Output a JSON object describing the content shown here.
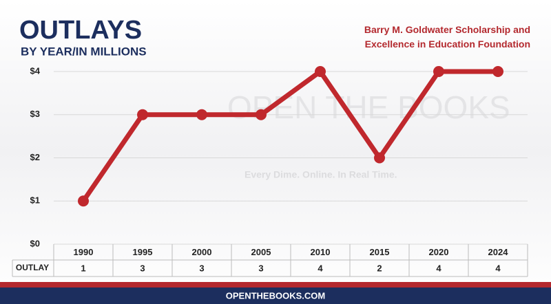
{
  "chart_data": {
    "type": "line",
    "title": "OUTLAYS",
    "subtitle": "BY YEAR/IN MILLIONS",
    "source": "Barry M. Goldwater Scholarship and Excellence in Education Foundation",
    "watermark": "OPEN THE BOOKS",
    "watermark_tagline": "Every Dime. Online. In Real Time.",
    "categories": [
      "1990",
      "1995",
      "2000",
      "2005",
      "2010",
      "2015",
      "2020",
      "2024"
    ],
    "values": [
      1,
      3,
      3,
      3,
      4,
      2,
      4,
      4
    ],
    "color": "#c0282d",
    "row_label": "OUTLAY",
    "ylim": [
      0,
      4
    ],
    "yticks": [
      {
        "value": 0,
        "label": "$0"
      },
      {
        "value": 1,
        "label": "$1"
      },
      {
        "value": 2,
        "label": "$2"
      },
      {
        "value": 3,
        "label": "$3"
      },
      {
        "value": 4,
        "label": "$4"
      }
    ],
    "grid": true,
    "footer": "OPENTHEBOOKS.COM"
  }
}
